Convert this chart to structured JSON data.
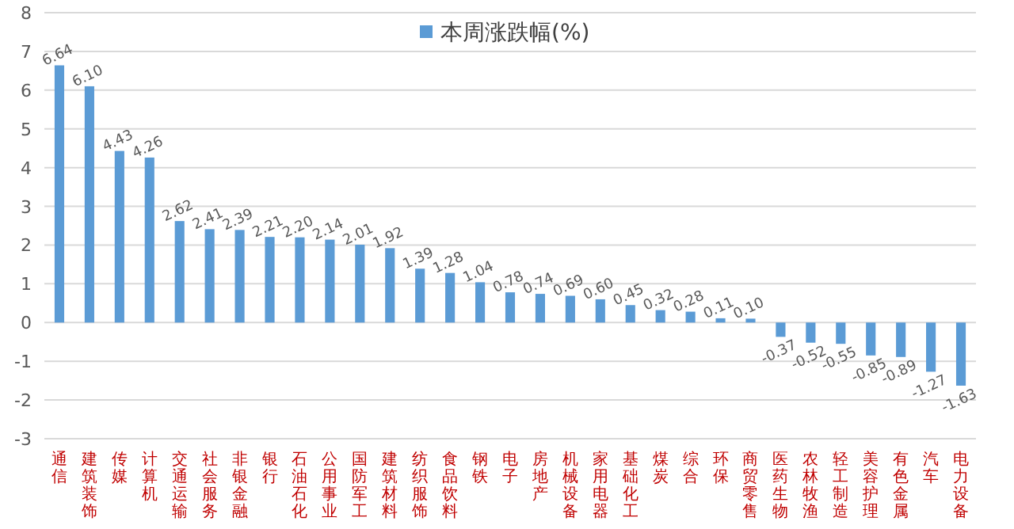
{
  "chart_data": {
    "type": "bar",
    "categories": [
      "通信",
      "建筑装饰",
      "传媒",
      "计算机",
      "交通运输",
      "社会服务",
      "非银金融",
      "银行",
      "石油石化",
      "公用事业",
      "国防军工",
      "建筑材料",
      "纺织服饰",
      "食品饮料",
      "钢铁",
      "电子",
      "房地产",
      "机械设备",
      "家用电器",
      "基础化工",
      "煤炭",
      "综合",
      "环保",
      "商贸零售",
      "医药生物",
      "农林牧渔",
      "轻工制造",
      "美容护理",
      "有色金属",
      "汽车",
      "电力设备"
    ],
    "series": [
      {
        "name": "本周涨跌幅(%)",
        "color": "#5b9bd5",
        "values": [
          6.64,
          6.1,
          4.43,
          4.26,
          2.62,
          2.41,
          2.39,
          2.21,
          2.2,
          2.14,
          2.01,
          1.92,
          1.39,
          1.28,
          1.04,
          0.78,
          0.74,
          0.69,
          0.6,
          0.45,
          0.32,
          0.28,
          0.11,
          0.1,
          -0.37,
          -0.52,
          -0.55,
          -0.85,
          -0.89,
          -1.27,
          -1.63
        ],
        "value_labels": [
          "6.64",
          "6.10",
          "4.43",
          "4.26",
          "2.62",
          "2.41",
          "2.39",
          "2.21",
          "2.20",
          "2.14",
          "2.01",
          "1.92",
          "1.39",
          "1.28",
          "1.04",
          "0.78",
          "0.74",
          "0.69",
          "0.60",
          "0.45",
          "0.32",
          "0.28",
          "0.11",
          "0.10",
          "-0.37",
          "-0.52",
          "-0.55",
          "-0.85",
          "-0.89",
          "-1.27",
          "-1.63"
        ]
      }
    ],
    "ylim": [
      -3,
      8
    ],
    "yticks": [
      -3,
      -2,
      -1,
      0,
      1,
      2,
      3,
      4,
      5,
      6,
      7,
      8
    ],
    "grid": "y",
    "legend": "top"
  }
}
